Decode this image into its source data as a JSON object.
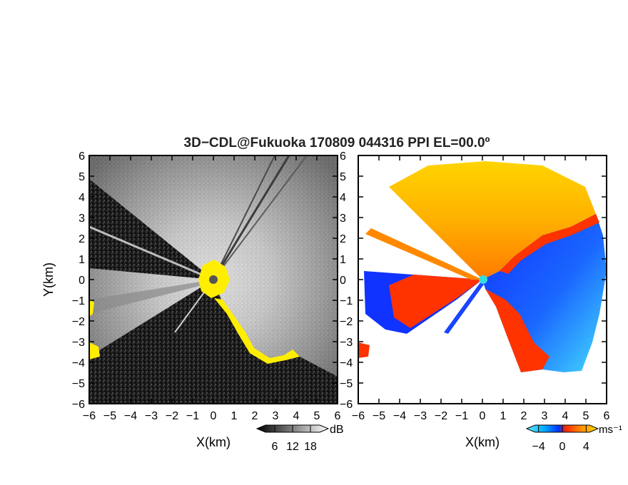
{
  "title": "3D−CDL@Fukuoka 170809 044316 PPI EL=00.0º",
  "chart_data": [
    {
      "type": "heatmap",
      "panel": "reflectivity",
      "xlabel": "X(km)",
      "ylabel": "Y(km)",
      "xlim": [
        -6,
        6
      ],
      "ylim": [
        -6,
        6
      ],
      "xticks": [
        "−6",
        "−5",
        "−4",
        "−3",
        "−2",
        "−1",
        "0",
        "1",
        "2",
        "3",
        "4",
        "5",
        "6"
      ],
      "yticks": [
        "6",
        "5",
        "4",
        "3",
        "2",
        "1",
        "0",
        "−1",
        "−2",
        "−3",
        "−4",
        "−5",
        "−6"
      ],
      "colorbar": {
        "unit": "dB",
        "ticks": [
          "6",
          "12",
          "18"
        ],
        "tick_values": [
          6,
          12,
          18
        ],
        "range": [
          0,
          24
        ],
        "colors": [
          "#000000",
          "#ffffff"
        ]
      },
      "highlight_color": "#ffee00"
    },
    {
      "type": "heatmap",
      "panel": "doppler-velocity",
      "xlabel": "X(km)",
      "xlim": [
        -6,
        6
      ],
      "ylim": [
        -6,
        6
      ],
      "xticks": [
        "−6",
        "−5",
        "−4",
        "−3",
        "−2",
        "−1",
        "0",
        "1",
        "2",
        "3",
        "4",
        "5",
        "6"
      ],
      "colorbar": {
        "unit": "ms⁻¹",
        "ticks": [
          "−4",
          "0",
          "4"
        ],
        "tick_values": [
          -4,
          0,
          4
        ],
        "range": [
          -6,
          6
        ],
        "colors": [
          "#66eeff",
          "#00aaff",
          "#0033ff",
          "#ff2a00",
          "#ff8800",
          "#ffdd00"
        ]
      }
    }
  ]
}
